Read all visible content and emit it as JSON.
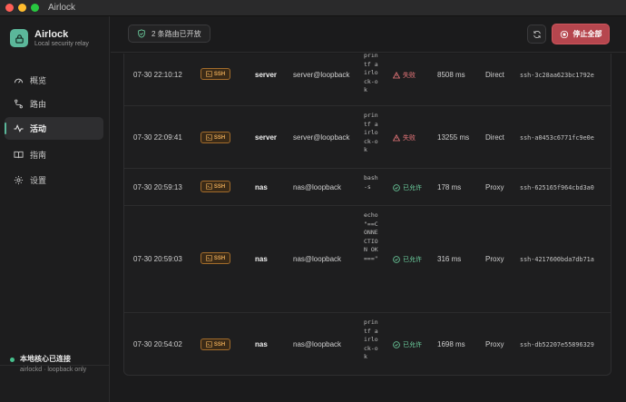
{
  "window": {
    "title": "Airlock"
  },
  "brand": {
    "name": "Airlock",
    "subtitle": "Local security relay"
  },
  "nav": [
    {
      "label": "概览",
      "icon": "gauge-icon"
    },
    {
      "label": "路由",
      "icon": "route-icon"
    },
    {
      "label": "活动",
      "icon": "activity-icon",
      "active": true
    },
    {
      "label": "指南",
      "icon": "book-icon"
    },
    {
      "label": "设置",
      "icon": "gear-icon"
    }
  ],
  "status": {
    "title": "本地核心已连接",
    "subtitle": "airlockd · loopback only"
  },
  "topbar": {
    "route_count": "2 条路由已开放",
    "stop_label": "停止全部"
  },
  "rows": [
    {
      "time": "07-30 22:10:12",
      "type": "SSH",
      "host": "server",
      "target": "server@loopback",
      "cmd": "printf airlock-ok",
      "status": "失败",
      "status_kind": "fail",
      "duration": "8508 ms",
      "route": "Direct",
      "session": "ssh-3c28aa623bc1792e"
    },
    {
      "time": "07-30 22:09:41",
      "type": "SSH",
      "host": "server",
      "target": "server@loopback",
      "cmd": "printf airlock-ok",
      "status": "失败",
      "status_kind": "fail",
      "duration": "13255 ms",
      "route": "Direct",
      "session": "ssh-a0453c6771fc9e0e"
    },
    {
      "time": "07-30 20:59:13",
      "type": "SSH",
      "host": "nas",
      "target": "nas@loopback",
      "cmd": "bash -s",
      "status": "已允许",
      "status_kind": "ok",
      "duration": "178 ms",
      "route": "Proxy",
      "session": "ssh-625165f964cbd3a0"
    },
    {
      "time": "07-30 20:59:03",
      "type": "SSH",
      "host": "nas",
      "target": "nas@loopback",
      "cmd": "echo \"==CONNECTION OK===\"",
      "status": "已允许",
      "status_kind": "ok",
      "duration": "316 ms",
      "route": "Proxy",
      "session": "ssh-4217600bda7db71a"
    },
    {
      "time": "07-30 20:54:02",
      "type": "SSH",
      "host": "nas",
      "target": "nas@loopback",
      "cmd": "printf airlock-ok",
      "status": "已允许",
      "status_kind": "ok",
      "duration": "1698 ms",
      "route": "Proxy",
      "session": "ssh-db52207e55896329"
    }
  ]
}
